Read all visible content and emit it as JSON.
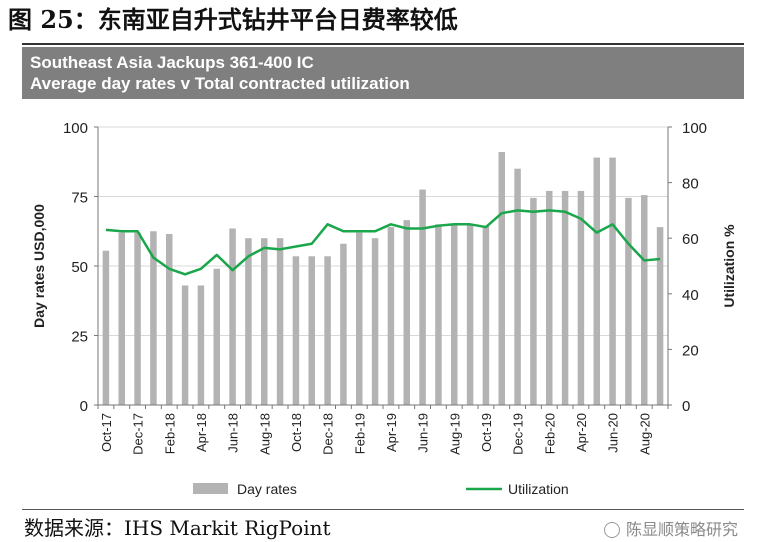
{
  "figure_title": "图 25：东南亚自升式钻井平台日费率较低",
  "banner": {
    "line1": "Southeast Asia Jackups 361-400 IC",
    "line2": "Average day rates v Total contracted utilization"
  },
  "source": "数据来源：IHS Markit RigPoint",
  "watermark": "陈显顺策略研究",
  "colors": {
    "bars": "#b3b3b3",
    "line": "#1aa64a",
    "banner": "#7f7f7f"
  },
  "chart_data": {
    "type": "bar",
    "title": "Southeast Asia Jackups 361-400 IC — Average day rates v Total contracted utilization",
    "x_tick_labels": [
      "Oct-17",
      "Dec-17",
      "Feb-18",
      "Apr-18",
      "Jun-18",
      "Aug-18",
      "Oct-18",
      "Dec-18",
      "Feb-19",
      "Apr-19",
      "Jun-19",
      "Aug-19",
      "Oct-19",
      "Dec-19",
      "Feb-20",
      "Apr-20",
      "Jun-20",
      "Aug-20"
    ],
    "months": [
      "Oct-17",
      "Nov-17",
      "Dec-17",
      "Jan-18",
      "Feb-18",
      "Mar-18",
      "Apr-18",
      "May-18",
      "Jun-18",
      "Jul-18",
      "Aug-18",
      "Sep-18",
      "Oct-18",
      "Nov-18",
      "Dec-18",
      "Jan-19",
      "Feb-19",
      "Mar-19",
      "Apr-19",
      "May-19",
      "Jun-19",
      "Jul-19",
      "Aug-19",
      "Sep-19",
      "Oct-19",
      "Nov-19",
      "Dec-19",
      "Jan-20",
      "Feb-20",
      "Mar-20",
      "Apr-20",
      "May-20",
      "Jun-20",
      "Jul-20",
      "Aug-20",
      "Sep-20"
    ],
    "series": [
      {
        "name": "Day rates",
        "kind": "bar",
        "axis": "left",
        "values": [
          55.5,
          62,
          62,
          62.5,
          61.5,
          43,
          43,
          49,
          63.5,
          60,
          60,
          60,
          53.5,
          53.5,
          53.5,
          58,
          62,
          60,
          64,
          66.5,
          77.5,
          65,
          65,
          65,
          64.5,
          91,
          85,
          74.5,
          77,
          77,
          77,
          89,
          89,
          74.5,
          75.5,
          64
        ]
      },
      {
        "name": "Utilization",
        "kind": "line",
        "axis": "right",
        "values": [
          63,
          62.5,
          62.5,
          53,
          49,
          47,
          49,
          54,
          48.5,
          53.5,
          56.5,
          56,
          57,
          58,
          65,
          62.5,
          62.5,
          62.5,
          65,
          63.5,
          63.5,
          64.5,
          65,
          65,
          64,
          69,
          70,
          69.5,
          70,
          69.5,
          67,
          62,
          65,
          58,
          52,
          52.5
        ]
      }
    ],
    "y_left": {
      "label": "Day rates USD,000",
      "ylim": [
        0,
        100
      ],
      "ticks": [
        0,
        25,
        50,
        75,
        100
      ]
    },
    "y_right": {
      "label": "Utilization %",
      "ylim": [
        0,
        100
      ],
      "ticks": [
        0,
        20,
        40,
        60,
        80,
        100
      ]
    },
    "grid": "horizontal",
    "legend_position": "bottom"
  }
}
